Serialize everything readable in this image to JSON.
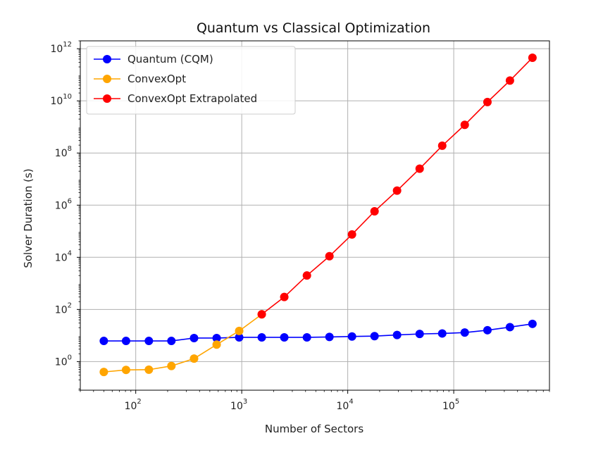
{
  "chart_data": {
    "type": "line",
    "title": "Quantum vs Classical Optimization",
    "xlabel": "Number of Sectors",
    "ylabel": "Solver Duration (s)",
    "xscale": "log",
    "yscale": "log",
    "xlim": [
      30,
      800000
    ],
    "ylim": [
      0.08,
      2000000000000
    ],
    "grid": true,
    "legend_loc": "upper left",
    "x_ticks": [
      {
        "value": 100,
        "base": "10",
        "exp": "2"
      },
      {
        "value": 1000,
        "base": "10",
        "exp": "3"
      },
      {
        "value": 10000,
        "base": "10",
        "exp": "4"
      },
      {
        "value": 100000,
        "base": "10",
        "exp": "5"
      }
    ],
    "y_ticks": [
      {
        "value": 1,
        "base": "10",
        "exp": "0"
      },
      {
        "value": 100,
        "base": "10",
        "exp": "2"
      },
      {
        "value": 10000,
        "base": "10",
        "exp": "4"
      },
      {
        "value": 1000000,
        "base": "10",
        "exp": "6"
      },
      {
        "value": 100000000,
        "base": "10",
        "exp": "8"
      },
      {
        "value": 10000000000,
        "base": "10",
        "exp": "10"
      },
      {
        "value": 1000000000000,
        "base": "10",
        "exp": "12"
      }
    ],
    "series": [
      {
        "name": "Quantum (CQM)",
        "color": "#0000ff",
        "x": [
          50,
          81,
          133,
          217,
          355,
          580,
          946,
          1545,
          2520,
          4120,
          6720,
          10970,
          17900,
          29200,
          47700,
          77900,
          127000,
          208000,
          339000,
          553000
        ],
        "y": [
          6.2,
          6.2,
          6.2,
          6.2,
          8.0,
          8.0,
          8.5,
          8.5,
          8.5,
          8.5,
          8.8,
          9.2,
          9.5,
          10.5,
          11.5,
          12.0,
          13.0,
          16.0,
          21.0,
          28.0
        ]
      },
      {
        "name": "ConvexOpt",
        "color": "#ffa500",
        "x": [
          50,
          81,
          133,
          217,
          355,
          580,
          946,
          1545
        ],
        "y": [
          0.4,
          0.48,
          0.49,
          0.68,
          1.3,
          4.5,
          15.0,
          65.0
        ]
      },
      {
        "name": "ConvexOpt Extrapolated",
        "color": "#ff0000",
        "x": [
          1545,
          2520,
          4120,
          6720,
          10970,
          17900,
          29200,
          47700,
          77900,
          127000,
          208000,
          339000,
          553000
        ],
        "y": [
          65,
          300,
          2000,
          11000,
          75000,
          580000,
          3600000,
          25000000,
          190000000,
          1200000000,
          9000000000,
          60000000000,
          450000000000
        ]
      }
    ]
  }
}
